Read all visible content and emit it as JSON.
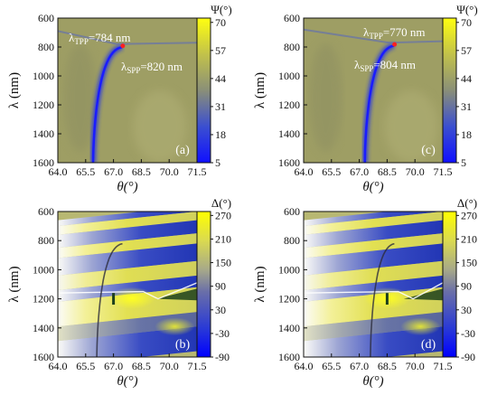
{
  "chart_data": [
    {
      "type": "heatmap",
      "panel_label": "(a)",
      "quantity": "Ψ(°)",
      "xlabel": "θ(°)",
      "ylabel": "λ (nm)",
      "x_ticks": [
        "64.0",
        "65.5",
        "67.0",
        "68.5",
        "70.0",
        "71.5"
      ],
      "y_ticks": [
        "600",
        "800",
        "1000",
        "1200",
        "1400",
        "1600"
      ],
      "xlim": [
        64.0,
        71.5
      ],
      "ylim": [
        600,
        1600
      ],
      "colorbar_ticks": [
        "70",
        "57",
        "44",
        "31",
        "18",
        "5"
      ],
      "colorbar_range": [
        5,
        72
      ],
      "annotations": [
        {
          "base": "λ",
          "sub": "TPP",
          "value": "=784 nm",
          "x": 67.5,
          "y": 784
        },
        {
          "base": "λ",
          "sub": "SPP",
          "value": "=820 nm",
          "x": 67.5,
          "y": 820
        }
      ]
    },
    {
      "type": "heatmap",
      "panel_label": "(c)",
      "quantity": "Ψ(°)",
      "xlabel": "θ(°)",
      "ylabel": "λ (nm)",
      "x_ticks": [
        "64.0",
        "65.5",
        "67.0",
        "68.5",
        "70.0",
        "71.5"
      ],
      "y_ticks": [
        "600",
        "800",
        "1000",
        "1200",
        "1400",
        "1600"
      ],
      "xlim": [
        64.0,
        71.5
      ],
      "ylim": [
        600,
        1600
      ],
      "colorbar_ticks": [
        "70",
        "57",
        "44",
        "31",
        "18",
        "5"
      ],
      "colorbar_range": [
        5,
        72
      ],
      "annotations": [
        {
          "base": "λ",
          "sub": "TPP",
          "value": "=770 nm",
          "x": 69.2,
          "y": 770
        },
        {
          "base": "λ",
          "sub": "SPP",
          "value": "=804 nm",
          "x": 69.2,
          "y": 804
        }
      ]
    },
    {
      "type": "heatmap",
      "panel_label": "(b)",
      "quantity": "Δ(°)",
      "xlabel": "θ(°)",
      "ylabel": "λ (nm)",
      "x_ticks": [
        "64.0",
        "65.5",
        "67.0",
        "68.5",
        "70.0",
        "71.5"
      ],
      "y_ticks": [
        "600",
        "800",
        "1000",
        "1200",
        "1400",
        "1600"
      ],
      "xlim": [
        64.0,
        71.5
      ],
      "ylim": [
        600,
        1600
      ],
      "colorbar_ticks": [
        "270",
        "210",
        "150",
        "90",
        "30",
        "-30",
        "-90"
      ],
      "colorbar_range": [
        -90,
        280
      ]
    },
    {
      "type": "heatmap",
      "panel_label": "(d)",
      "quantity": "Δ(°)",
      "xlabel": "θ(°)",
      "ylabel": "λ (nm)",
      "x_ticks": [
        "64.0",
        "65.5",
        "67.0",
        "68.5",
        "70.0",
        "71.5"
      ],
      "y_ticks": [
        "600",
        "800",
        "1000",
        "1200",
        "1400",
        "1600"
      ],
      "xlim": [
        64.0,
        71.5
      ],
      "ylim": [
        600,
        1600
      ],
      "colorbar_ticks": [
        "270",
        "210",
        "150",
        "90",
        "30",
        "-30",
        "-90"
      ],
      "colorbar_range": [
        -90,
        280
      ]
    }
  ]
}
